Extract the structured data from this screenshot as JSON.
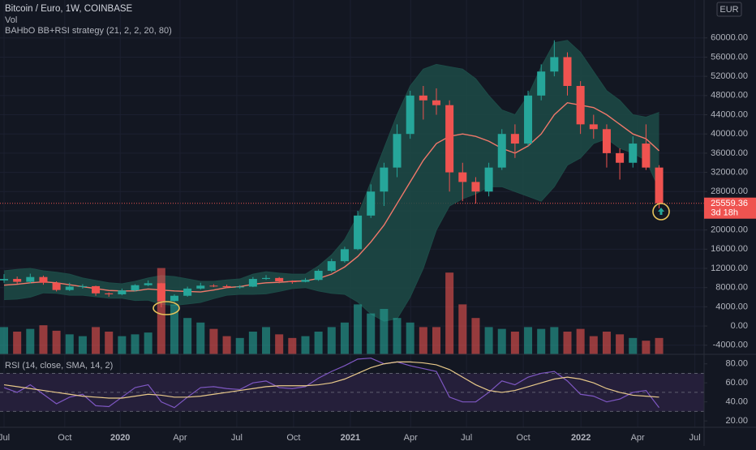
{
  "chart_data": [
    {
      "type": "candlestick",
      "title": "Bitcoin / Euro, 1W, COINBASE",
      "volume_label": "Vol",
      "indicator": "BAHbO BB+RSI strategy (21, 2, 2, 20, 80)",
      "currency": "EUR",
      "x": [
        0,
        3,
        6,
        9,
        12,
        15,
        18,
        21,
        24,
        27,
        30,
        33,
        36,
        39,
        42,
        45,
        48,
        51,
        54,
        57,
        60,
        63,
        66,
        69,
        72,
        75,
        78,
        81,
        84,
        87,
        90,
        93,
        96,
        99,
        102,
        105,
        108,
        111,
        114,
        117,
        120,
        123,
        126,
        129,
        132,
        135,
        138,
        141,
        144,
        147,
        150
      ],
      "open": [
        9500,
        9800,
        9200,
        10200,
        9000,
        7500,
        8200,
        8300,
        6800,
        6600,
        7400,
        8500,
        8900,
        5200,
        6300,
        7800,
        8400,
        8300,
        8100,
        8200,
        9800,
        10000,
        9300,
        9200,
        9600,
        11500,
        13500,
        16000,
        23000,
        28000,
        33000,
        40000,
        48000,
        47000,
        46000,
        32000,
        30000,
        28000,
        33000,
        40000,
        38000,
        48000,
        53000,
        56000,
        50000,
        42000,
        41000,
        36000,
        34000,
        38000,
        33000
      ],
      "high": [
        10800,
        10300,
        10900,
        10500,
        9300,
        9000,
        8700,
        8400,
        7000,
        7800,
        8700,
        9500,
        9000,
        6600,
        8200,
        9000,
        8700,
        8600,
        8500,
        10200,
        10600,
        10200,
        9500,
        10000,
        11800,
        14000,
        16500,
        24000,
        29500,
        34000,
        42000,
        49000,
        50000,
        49500,
        47000,
        34000,
        31000,
        34000,
        41000,
        42000,
        49000,
        54500,
        59500,
        57000,
        51000,
        44000,
        42000,
        37000,
        39500,
        42000,
        33500
      ],
      "low": [
        9000,
        8800,
        8900,
        8600,
        7200,
        7300,
        7800,
        6300,
        6100,
        6400,
        7200,
        8300,
        3900,
        5000,
        6100,
        7600,
        8100,
        7900,
        7800,
        8100,
        9600,
        8900,
        8800,
        9100,
        9400,
        11200,
        13200,
        15800,
        22500,
        25000,
        31000,
        39000,
        43000,
        44000,
        28000,
        26000,
        25500,
        27000,
        32500,
        35000,
        37500,
        47000,
        52000,
        48000,
        40000,
        39000,
        33000,
        30500,
        33000,
        32500,
        24500
      ],
      "close": [
        9800,
        9200,
        10200,
        9000,
        7500,
        8200,
        8300,
        6800,
        6600,
        7400,
        8500,
        8900,
        5200,
        6300,
        7800,
        8400,
        8300,
        8100,
        8200,
        9800,
        10000,
        9300,
        9200,
        9600,
        11500,
        13500,
        16000,
        23000,
        28000,
        33000,
        40000,
        48000,
        47000,
        46000,
        32000,
        30000,
        28000,
        33000,
        40000,
        38000,
        48000,
        53000,
        56000,
        50000,
        42000,
        41000,
        36000,
        34000,
        38000,
        33000,
        25559.36
      ],
      "up_color": "#26a69a",
      "down_color": "#ef5350",
      "volume": [
        30,
        25,
        28,
        32,
        26,
        22,
        20,
        30,
        25,
        20,
        22,
        24,
        95,
        55,
        40,
        35,
        28,
        20,
        18,
        25,
        30,
        22,
        18,
        20,
        25,
        30,
        35,
        55,
        45,
        50,
        40,
        35,
        30,
        30,
        90,
        55,
        40,
        30,
        28,
        25,
        30,
        28,
        30,
        25,
        28,
        20,
        25,
        22,
        18,
        15,
        18
      ],
      "volume_lim": [
        0,
        100
      ],
      "bands": {
        "upper": [
          11500,
          11800,
          12000,
          11500,
          11200,
          10800,
          10000,
          9500,
          9000,
          8800,
          9300,
          10000,
          10500,
          10300,
          9800,
          9300,
          9300,
          9600,
          9800,
          10800,
          11300,
          11000,
          10800,
          10800,
          12500,
          14800,
          18000,
          23000,
          30000,
          37000,
          44000,
          50000,
          53500,
          54500,
          54000,
          53500,
          51500,
          48000,
          45000,
          44000,
          48000,
          54000,
          59000,
          59500,
          57000,
          53000,
          49000,
          47000,
          44000,
          43500,
          44500
        ],
        "middle": [
          8500,
          8700,
          9000,
          9200,
          9000,
          8600,
          8200,
          7800,
          7400,
          7300,
          7300,
          7700,
          7500,
          7300,
          7200,
          7100,
          7500,
          8000,
          8200,
          8700,
          9000,
          9100,
          9300,
          9400,
          9900,
          10800,
          12300,
          14500,
          17500,
          21000,
          25500,
          30000,
          34500,
          38000,
          39500,
          40000,
          39500,
          38500,
          37000,
          36000,
          37500,
          40000,
          44000,
          46500,
          46000,
          45500,
          44000,
          42000,
          40000,
          39000,
          36500
        ],
        "lower": [
          5500,
          5600,
          6000,
          6900,
          6800,
          6400,
          6400,
          6100,
          5800,
          5800,
          5300,
          5400,
          4500,
          4300,
          4600,
          4900,
          5700,
          6400,
          6600,
          6600,
          6700,
          7200,
          7800,
          8000,
          7300,
          6800,
          6600,
          5000,
          2500,
          1000,
          1500,
          6000,
          12000,
          20000,
          25000,
          26500,
          27500,
          29000,
          29000,
          28000,
          27000,
          26000,
          29000,
          33500,
          35000,
          38000,
          39000,
          37000,
          36000,
          34500,
          28500
        ],
        "fill": "#1d4b47",
        "line_color": "#f0786a"
      },
      "last_price": 25559.36,
      "countdown": "3d 18h",
      "xlim": [
        -0.93,
        160.3
      ],
      "ylim": [
        -5900,
        67900
      ],
      "yticks": [
        {
          "value": -4000,
          "label": "-4000.00"
        },
        {
          "value": 0,
          "label": "0.00"
        },
        {
          "value": 4000,
          "label": "4000.00"
        },
        {
          "value": 8000,
          "label": "8000.00"
        },
        {
          "value": 12000,
          "label": "12000.00"
        },
        {
          "value": 16000,
          "label": "16000.00"
        },
        {
          "value": 20000,
          "label": "20000.00"
        },
        {
          "value": 24000,
          "label": "24000.00"
        },
        {
          "value": 28000,
          "label": "28000.00"
        },
        {
          "value": 32000,
          "label": "32000.00"
        },
        {
          "value": 36000,
          "label": "36000.00"
        },
        {
          "value": 40000,
          "label": "40000.00"
        },
        {
          "value": 44000,
          "label": "44000.00"
        },
        {
          "value": 48000,
          "label": "48000.00"
        },
        {
          "value": 52000,
          "label": "52000.00"
        },
        {
          "value": 56000,
          "label": "56000.00"
        },
        {
          "value": 60000,
          "label": "60000.00"
        }
      ],
      "grid": true
    },
    {
      "type": "line",
      "title": "RSI (14, close, SMA, 14, 2)",
      "x": [
        0,
        3,
        6,
        9,
        12,
        15,
        18,
        21,
        24,
        27,
        30,
        33,
        36,
        39,
        42,
        45,
        48,
        51,
        54,
        57,
        60,
        63,
        66,
        69,
        72,
        75,
        78,
        81,
        84,
        87,
        90,
        93,
        96,
        99,
        102,
        105,
        108,
        111,
        114,
        117,
        120,
        123,
        126,
        129,
        132,
        135,
        138,
        141,
        144,
        147,
        150
      ],
      "rsi": {
        "color": "#7e57c2",
        "values": [
          55,
          50,
          58,
          48,
          38,
          45,
          48,
          36,
          35,
          45,
          55,
          58,
          40,
          34,
          45,
          55,
          56,
          54,
          53,
          60,
          62,
          55,
          54,
          56,
          65,
          72,
          78,
          85,
          86,
          80,
          82,
          78,
          75,
          72,
          45,
          40,
          40,
          50,
          62,
          58,
          66,
          70,
          72,
          62,
          48,
          46,
          40,
          43,
          50,
          52,
          34
        ]
      },
      "rsi_ma": {
        "color": "#e8c98a",
        "values": [
          58,
          56,
          54,
          52,
          50,
          48,
          46,
          45,
          44,
          44,
          46,
          48,
          47,
          45,
          45,
          46,
          48,
          50,
          52,
          54,
          56,
          57,
          57,
          57,
          58,
          60,
          64,
          70,
          76,
          80,
          82,
          82,
          81,
          79,
          74,
          66,
          58,
          52,
          50,
          52,
          56,
          60,
          64,
          66,
          64,
          60,
          54,
          50,
          47,
          46,
          45
        ]
      },
      "levels": [
        70,
        50,
        30
      ],
      "band_fill": "#251f3a",
      "xlim": [
        -0.93,
        160.3
      ],
      "ylim": [
        15,
        90
      ],
      "yticks": [
        {
          "value": 20,
          "label": "20.00"
        },
        {
          "value": 40,
          "label": "40.00"
        },
        {
          "value": 60,
          "label": "60.00"
        },
        {
          "value": 80,
          "label": "80.00"
        }
      ],
      "xticks": [
        {
          "value": 0,
          "label": "Jul"
        },
        {
          "value": 13.9,
          "label": "Oct"
        },
        {
          "value": 26.6,
          "label": "2020"
        },
        {
          "value": 40.3,
          "label": "Apr"
        },
        {
          "value": 53.3,
          "label": "Jul"
        },
        {
          "value": 66.3,
          "label": "Oct"
        },
        {
          "value": 79.3,
          "label": "2021"
        },
        {
          "value": 93.1,
          "label": "Apr"
        },
        {
          "value": 105.9,
          "label": "Jul"
        },
        {
          "value": 118.9,
          "label": "Oct"
        },
        {
          "value": 132.1,
          "label": "2022"
        },
        {
          "value": 145.1,
          "label": "Apr"
        },
        {
          "value": 158.2,
          "label": "Jul"
        }
      ]
    }
  ]
}
